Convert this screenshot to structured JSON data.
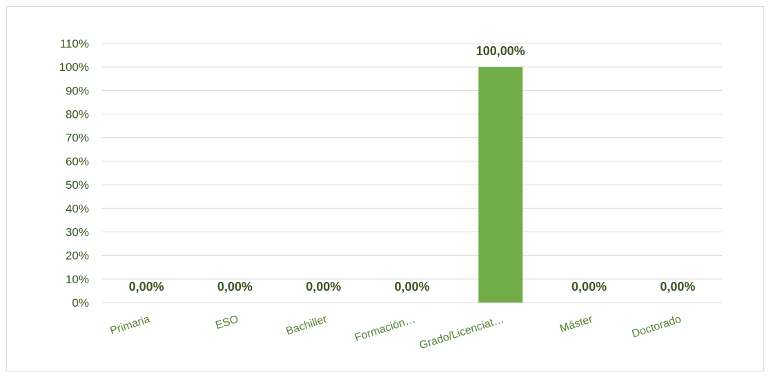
{
  "chart_data": {
    "type": "bar",
    "categories": [
      "Primaria",
      "ESO",
      "Bachiller",
      "Formación…",
      "Grado/Licenciat…",
      "Máster",
      "Doctorado"
    ],
    "values": [
      0,
      0,
      0,
      0,
      100,
      0,
      0
    ],
    "data_labels": [
      "0,00%",
      "0,00%",
      "0,00%",
      "0,00%",
      "100,00%",
      "0,00%",
      "0,00%"
    ],
    "y_ticks": [
      "0%",
      "10%",
      "20%",
      "30%",
      "40%",
      "50%",
      "60%",
      "70%",
      "80%",
      "90%",
      "100%",
      "110%"
    ],
    "ylim": [
      0,
      110
    ],
    "title": "",
    "xlabel": "",
    "ylabel": "",
    "grid": true,
    "legend": "none",
    "colors": {
      "bar": "#70ad47",
      "label": "#375623",
      "category": "#548235",
      "grid": "#d9d9d9"
    }
  }
}
